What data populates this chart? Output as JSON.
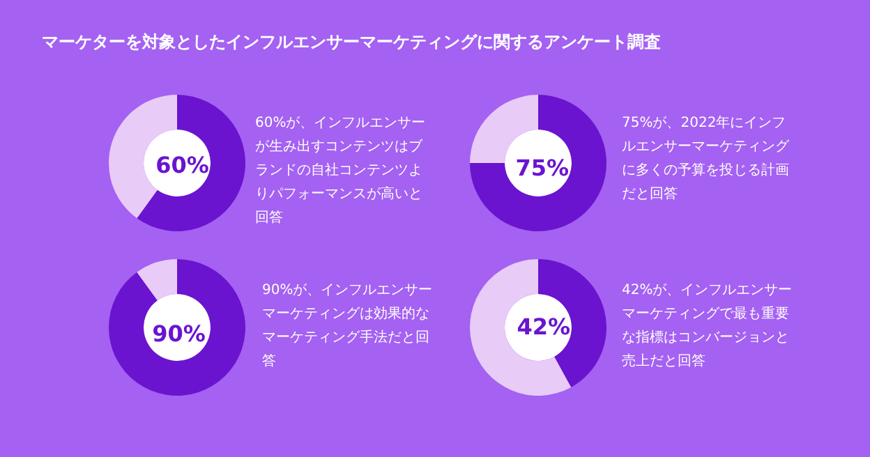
{
  "chart_data": [
    {
      "type": "donut",
      "title": "マーケターを対象としたインフルエンサーマーケティングに関するアンケート調査",
      "categories": [
        null,
        null
      ],
      "values": [
        60,
        40
      ],
      "colors": [
        "#6a14cf",
        "#e8cbf7"
      ],
      "value_labels": [
        "60%",
        null
      ],
      "annotations": [
        "60%が、インフルエンサーが生み出すコンテンツはブランドの自社コンテンツよりパフォーマンスが高いと回答"
      ]
    },
    {
      "type": "donut",
      "categories": [
        null,
        null
      ],
      "values": [
        75,
        25
      ],
      "colors": [
        "#6a14cf",
        "#e8cbf7"
      ],
      "value_labels": [
        "75%",
        null
      ],
      "annotations": [
        "75%が、2022年にインフルエンサーマーケティングに多くの予算を投じる計画だと回答"
      ]
    },
    {
      "type": "donut",
      "categories": [
        null,
        null
      ],
      "values": [
        90,
        10
      ],
      "colors": [
        "#6a14cf",
        "#e8cbf7"
      ],
      "value_labels": [
        "90%",
        null
      ],
      "annotations": [
        "90%が、インフルエンサーマーケティングは効果的なマーケティング手法だと回答"
      ]
    },
    {
      "type": "donut",
      "categories": [
        null,
        null
      ],
      "values": [
        42,
        58
      ],
      "colors": [
        "#6a14cf",
        "#e8cbf7"
      ],
      "value_labels": [
        "42%",
        null
      ],
      "annotations": [
        "42%が、インフルエンサーマーケティングで最も重要な指標はコンバージョンと売上だと回答"
      ]
    }
  ]
}
